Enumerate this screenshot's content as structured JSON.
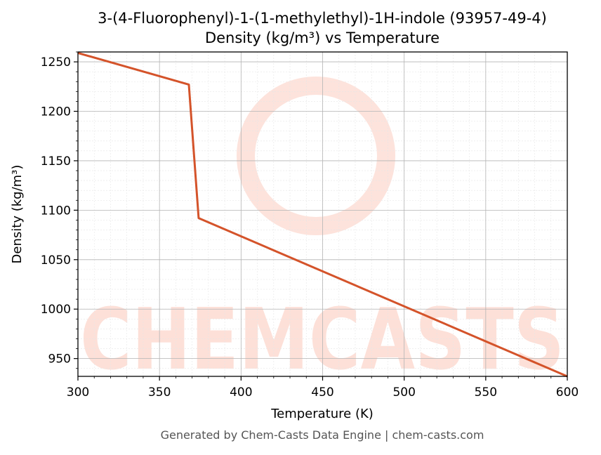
{
  "chart_data": {
    "type": "line",
    "title": "3-(4-Fluorophenyl)-1-(1-methylethyl)-1H-indole (93957-49-4)",
    "subtitle": "Density (kg/m³) vs Temperature",
    "xlabel": "Temperature (K)",
    "ylabel": "Density (kg/m³)",
    "xlim": [
      300,
      600
    ],
    "ylim": [
      932,
      1260
    ],
    "x_ticks": [
      300,
      350,
      400,
      450,
      500,
      550,
      600
    ],
    "y_ticks": [
      950,
      1000,
      1050,
      1100,
      1150,
      1200,
      1250
    ],
    "grid": true,
    "series": [
      {
        "color": "#d4532a",
        "x": [
          300,
          368,
          374,
          600
        ],
        "y": [
          1259,
          1227,
          1092,
          932
        ]
      }
    ]
  },
  "watermark": {
    "text": "CHEMCASTS",
    "color": "#fde0d8"
  },
  "footer": "Generated by Chem-Casts Data Engine | chem-casts.com"
}
